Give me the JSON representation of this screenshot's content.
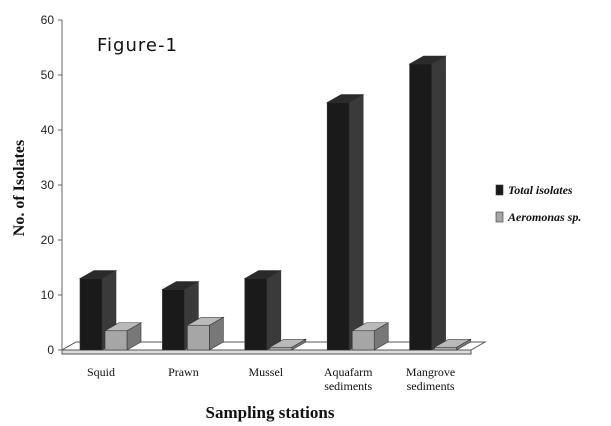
{
  "chart_data": {
    "type": "bar",
    "title": "Figure-1",
    "xlabel": "Sampling stations",
    "ylabel": "No. of Isolates",
    "ylim": [
      0,
      60
    ],
    "yticks": [
      0,
      10,
      20,
      30,
      40,
      50,
      60
    ],
    "categories": [
      [
        "Squid"
      ],
      [
        "Prawn"
      ],
      [
        "Mussel"
      ],
      [
        "Aquafarm",
        "sediments"
      ],
      [
        "Mangrove",
        "sediments"
      ]
    ],
    "series": [
      {
        "name": "Total isolates",
        "values": [
          13,
          11,
          13,
          45,
          52
        ],
        "color": "#1a1a1a"
      },
      {
        "name": "Aeromonas sp.",
        "values": [
          3.5,
          4.5,
          0.5,
          3.5,
          0.5
        ],
        "color": "#a6a6a6"
      }
    ],
    "legend_position": "right",
    "style": "3d-column",
    "grid": false
  }
}
